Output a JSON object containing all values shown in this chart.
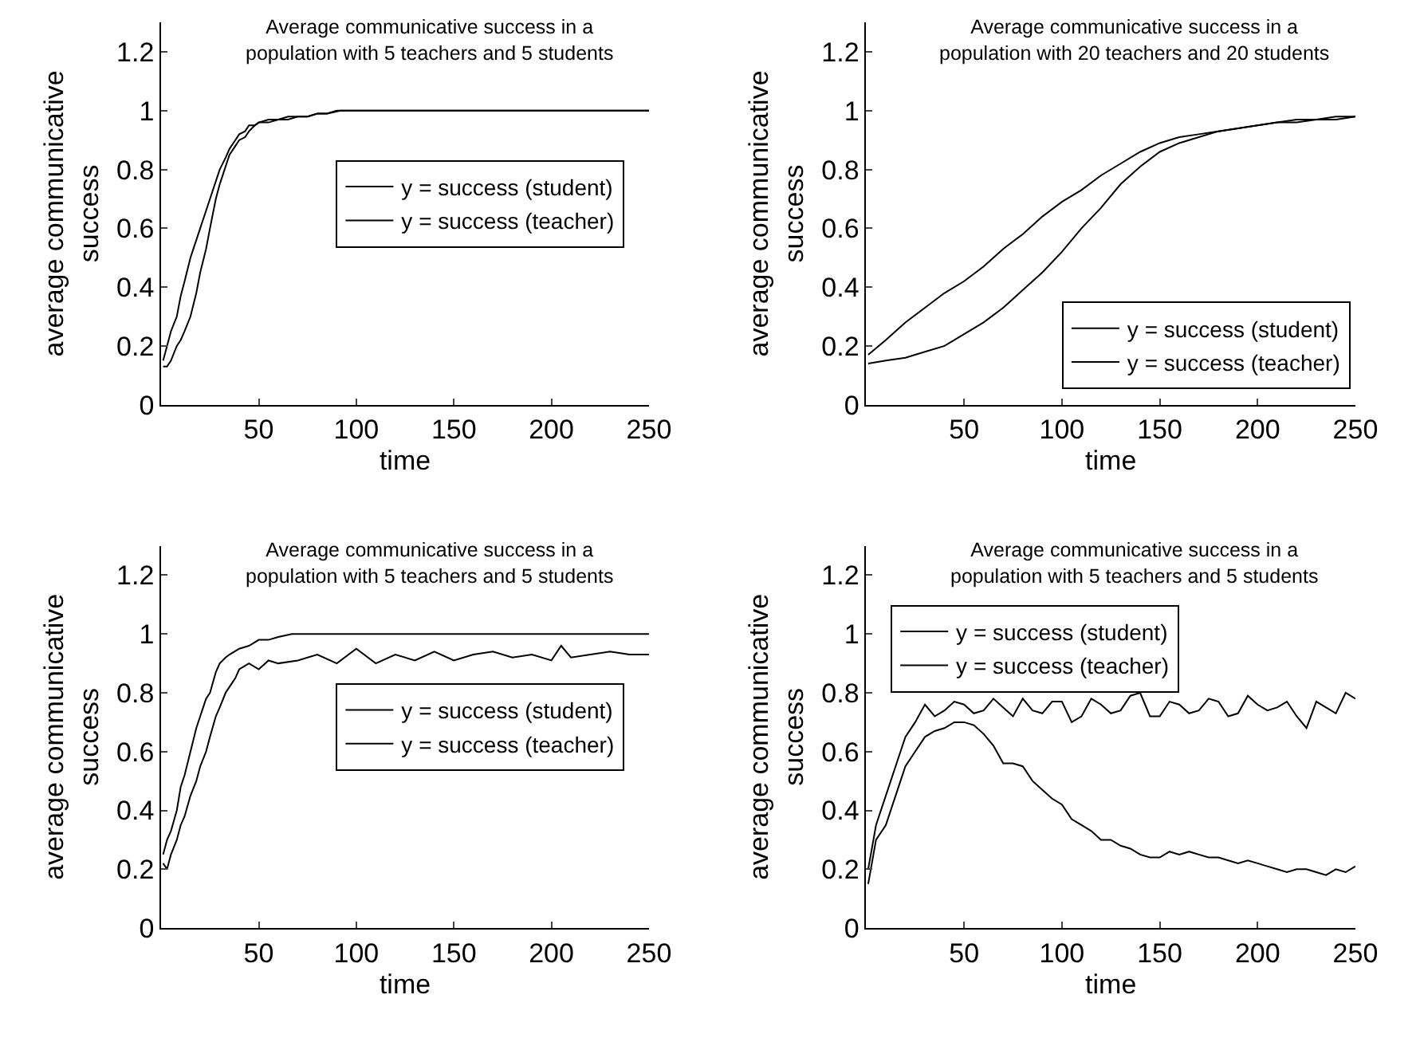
{
  "chart_data": [
    {
      "type": "line",
      "title": "Average communicative success in a population with 5 teachers and 5 students",
      "xlabel": "time",
      "ylabel": "average communicative success",
      "xlim": [
        0,
        250
      ],
      "ylim": [
        0,
        1.3
      ],
      "xticks": [
        50,
        100,
        150,
        200,
        250
      ],
      "yticks": [
        0,
        0.2,
        0.4,
        0.6,
        0.8,
        1,
        1.2
      ],
      "legend": "right",
      "series": [
        {
          "name": "y = success (student)",
          "color": "#000000",
          "x": [
            1,
            3,
            5,
            8,
            10,
            12,
            15,
            18,
            20,
            23,
            25,
            28,
            30,
            33,
            35,
            38,
            40,
            43,
            45,
            48,
            50,
            55,
            60,
            65,
            70,
            75,
            80,
            85,
            90,
            95,
            100,
            150,
            200,
            250
          ],
          "values": [
            0.15,
            0.2,
            0.25,
            0.3,
            0.37,
            0.42,
            0.5,
            0.56,
            0.6,
            0.66,
            0.7,
            0.76,
            0.8,
            0.84,
            0.87,
            0.9,
            0.92,
            0.93,
            0.95,
            0.95,
            0.96,
            0.97,
            0.97,
            0.98,
            0.98,
            0.98,
            0.99,
            0.99,
            1,
            1,
            1,
            1,
            1,
            1
          ]
        },
        {
          "name": "y = success (teacher)",
          "color": "#000000",
          "x": [
            1,
            3,
            5,
            8,
            10,
            12,
            15,
            18,
            20,
            23,
            25,
            28,
            30,
            33,
            35,
            38,
            40,
            43,
            45,
            48,
            50,
            55,
            60,
            65,
            70,
            75,
            80,
            85,
            92,
            100,
            150,
            200,
            250
          ],
          "values": [
            0.13,
            0.13,
            0.15,
            0.2,
            0.22,
            0.25,
            0.3,
            0.38,
            0.45,
            0.53,
            0.6,
            0.7,
            0.75,
            0.81,
            0.85,
            0.88,
            0.9,
            0.91,
            0.93,
            0.95,
            0.96,
            0.96,
            0.97,
            0.97,
            0.98,
            0.98,
            0.99,
            0.99,
            1,
            1,
            1,
            1,
            1
          ]
        }
      ]
    },
    {
      "type": "line",
      "title": "Average communicative success in a population with 20 teachers and 20 students",
      "xlabel": "time",
      "ylabel": "average communicative success",
      "xlim": [
        0,
        250
      ],
      "ylim": [
        0,
        1.3
      ],
      "xticks": [
        50,
        100,
        150,
        200,
        250
      ],
      "yticks": [
        0,
        0.2,
        0.4,
        0.6,
        0.8,
        1,
        1.2
      ],
      "legend": "bottom right",
      "series": [
        {
          "name": "y = success (student)",
          "color": "#000000",
          "x": [
            1,
            10,
            20,
            30,
            40,
            50,
            60,
            70,
            80,
            90,
            100,
            110,
            120,
            130,
            140,
            150,
            160,
            170,
            180,
            190,
            200,
            210,
            220,
            230,
            240,
            250
          ],
          "values": [
            0.17,
            0.22,
            0.28,
            0.33,
            0.38,
            0.42,
            0.47,
            0.53,
            0.58,
            0.64,
            0.69,
            0.73,
            0.78,
            0.82,
            0.86,
            0.89,
            0.91,
            0.92,
            0.93,
            0.94,
            0.95,
            0.96,
            0.96,
            0.97,
            0.97,
            0.98
          ]
        },
        {
          "name": "y = success (teacher)",
          "color": "#000000",
          "x": [
            1,
            10,
            20,
            30,
            40,
            50,
            60,
            70,
            80,
            90,
            100,
            110,
            120,
            130,
            140,
            150,
            160,
            170,
            180,
            190,
            200,
            210,
            220,
            230,
            240,
            250
          ],
          "values": [
            0.14,
            0.15,
            0.16,
            0.18,
            0.2,
            0.24,
            0.28,
            0.33,
            0.39,
            0.45,
            0.52,
            0.6,
            0.67,
            0.75,
            0.81,
            0.86,
            0.89,
            0.91,
            0.93,
            0.94,
            0.95,
            0.96,
            0.97,
            0.97,
            0.98,
            0.98
          ]
        }
      ]
    },
    {
      "type": "line",
      "title": "Average communicative success in a population with 5 teachers and 5 students",
      "xlabel": "time",
      "ylabel": "average communicative success",
      "xlim": [
        0,
        250
      ],
      "ylim": [
        0,
        1.3
      ],
      "xticks": [
        50,
        100,
        150,
        200,
        250
      ],
      "yticks": [
        0,
        0.2,
        0.4,
        0.6,
        0.8,
        1,
        1.2
      ],
      "legend": "right",
      "series": [
        {
          "name": "y = success (student)",
          "color": "#000000",
          "x": [
            1,
            3,
            5,
            8,
            10,
            12,
            15,
            18,
            20,
            23,
            25,
            28,
            30,
            33,
            35,
            40,
            45,
            50,
            55,
            60,
            67,
            100,
            150,
            200,
            250
          ],
          "values": [
            0.25,
            0.3,
            0.33,
            0.4,
            0.48,
            0.52,
            0.6,
            0.68,
            0.72,
            0.78,
            0.8,
            0.87,
            0.9,
            0.92,
            0.93,
            0.95,
            0.96,
            0.98,
            0.98,
            0.99,
            1,
            1,
            1,
            1,
            1
          ]
        },
        {
          "name": "y = success (teacher)",
          "color": "#000000",
          "x": [
            1,
            3,
            5,
            8,
            10,
            12,
            15,
            18,
            20,
            23,
            25,
            28,
            30,
            33,
            35,
            38,
            40,
            45,
            50,
            55,
            60,
            70,
            80,
            90,
            100,
            110,
            120,
            130,
            140,
            150,
            160,
            170,
            180,
            190,
            200,
            205,
            210,
            220,
            230,
            240,
            250
          ],
          "values": [
            0.22,
            0.2,
            0.25,
            0.3,
            0.35,
            0.38,
            0.45,
            0.5,
            0.55,
            0.6,
            0.65,
            0.72,
            0.75,
            0.8,
            0.82,
            0.85,
            0.88,
            0.9,
            0.88,
            0.91,
            0.9,
            0.91,
            0.93,
            0.9,
            0.95,
            0.9,
            0.93,
            0.91,
            0.94,
            0.91,
            0.93,
            0.94,
            0.92,
            0.93,
            0.91,
            0.96,
            0.92,
            0.93,
            0.94,
            0.93,
            0.93
          ]
        }
      ]
    },
    {
      "type": "line",
      "title": "Average communicative success in a population with 5 teachers and 5 students",
      "xlabel": "time",
      "ylabel": "average communicative success",
      "xlim": [
        0,
        250
      ],
      "ylim": [
        0,
        1.3
      ],
      "xticks": [
        50,
        100,
        150,
        200,
        250
      ],
      "yticks": [
        0,
        0.2,
        0.4,
        0.6,
        0.8,
        1,
        1.2
      ],
      "legend": "top left",
      "series": [
        {
          "name": "y = success (student)",
          "color": "#000000",
          "x": [
            1,
            5,
            10,
            15,
            20,
            25,
            30,
            35,
            40,
            45,
            50,
            55,
            60,
            65,
            70,
            75,
            80,
            85,
            90,
            95,
            100,
            105,
            110,
            115,
            120,
            125,
            130,
            135,
            140,
            145,
            150,
            155,
            160,
            165,
            170,
            175,
            180,
            185,
            190,
            195,
            200,
            205,
            210,
            215,
            220,
            225,
            230,
            235,
            240,
            245,
            250
          ],
          "values": [
            0.2,
            0.35,
            0.45,
            0.55,
            0.65,
            0.7,
            0.76,
            0.72,
            0.74,
            0.77,
            0.76,
            0.73,
            0.74,
            0.78,
            0.75,
            0.72,
            0.78,
            0.74,
            0.73,
            0.77,
            0.77,
            0.7,
            0.72,
            0.78,
            0.76,
            0.73,
            0.74,
            0.79,
            0.8,
            0.72,
            0.72,
            0.77,
            0.76,
            0.73,
            0.74,
            0.78,
            0.77,
            0.72,
            0.73,
            0.79,
            0.76,
            0.74,
            0.75,
            0.77,
            0.72,
            0.68,
            0.77,
            0.75,
            0.73,
            0.8,
            0.78
          ]
        },
        {
          "name": "y = success (teacher)",
          "color": "#000000",
          "x": [
            1,
            5,
            10,
            15,
            20,
            25,
            30,
            35,
            40,
            45,
            50,
            55,
            60,
            65,
            70,
            75,
            80,
            85,
            90,
            95,
            100,
            105,
            110,
            115,
            120,
            125,
            130,
            135,
            140,
            145,
            150,
            155,
            160,
            165,
            170,
            175,
            180,
            185,
            190,
            195,
            200,
            205,
            210,
            215,
            220,
            225,
            230,
            235,
            240,
            245,
            250
          ],
          "values": [
            0.15,
            0.3,
            0.35,
            0.45,
            0.55,
            0.6,
            0.65,
            0.67,
            0.68,
            0.7,
            0.7,
            0.69,
            0.66,
            0.62,
            0.56,
            0.56,
            0.55,
            0.5,
            0.47,
            0.44,
            0.42,
            0.37,
            0.35,
            0.33,
            0.3,
            0.3,
            0.28,
            0.27,
            0.25,
            0.24,
            0.24,
            0.26,
            0.25,
            0.26,
            0.25,
            0.24,
            0.24,
            0.23,
            0.22,
            0.23,
            0.22,
            0.21,
            0.2,
            0.19,
            0.2,
            0.2,
            0.19,
            0.18,
            0.2,
            0.19,
            0.21
          ]
        }
      ]
    }
  ]
}
